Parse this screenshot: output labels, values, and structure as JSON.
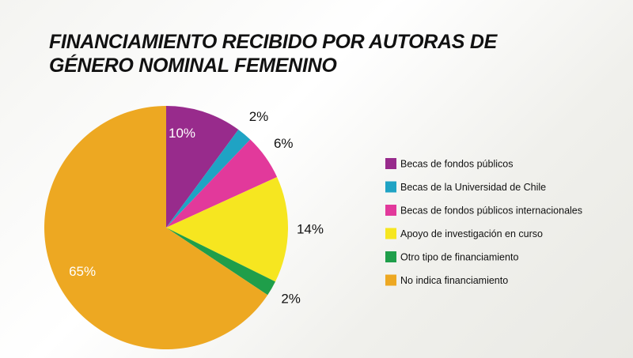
{
  "chart_data": {
    "type": "pie",
    "title": "FINANCIAMIENTO RECIBIDO POR AUTORAS DE GÉNERO NOMINAL FEMENINO",
    "categories": [
      "Becas de fondos públicos",
      "Becas de la Universidad de Chile",
      "Becas de fondos públicos internacionales",
      "Apoyo de investigación en curso",
      "Otro tipo de financiamiento",
      "No indica financiamiento"
    ],
    "values": [
      10,
      2,
      6,
      14,
      2,
      65
    ],
    "value_labels": [
      "10%",
      "2%",
      "6%",
      "14%",
      "2%",
      "65%"
    ],
    "colors": [
      "#982b8c",
      "#1fa3c4",
      "#e2399b",
      "#f6e620",
      "#1f9e4a",
      "#eda822"
    ],
    "legend": "right"
  }
}
